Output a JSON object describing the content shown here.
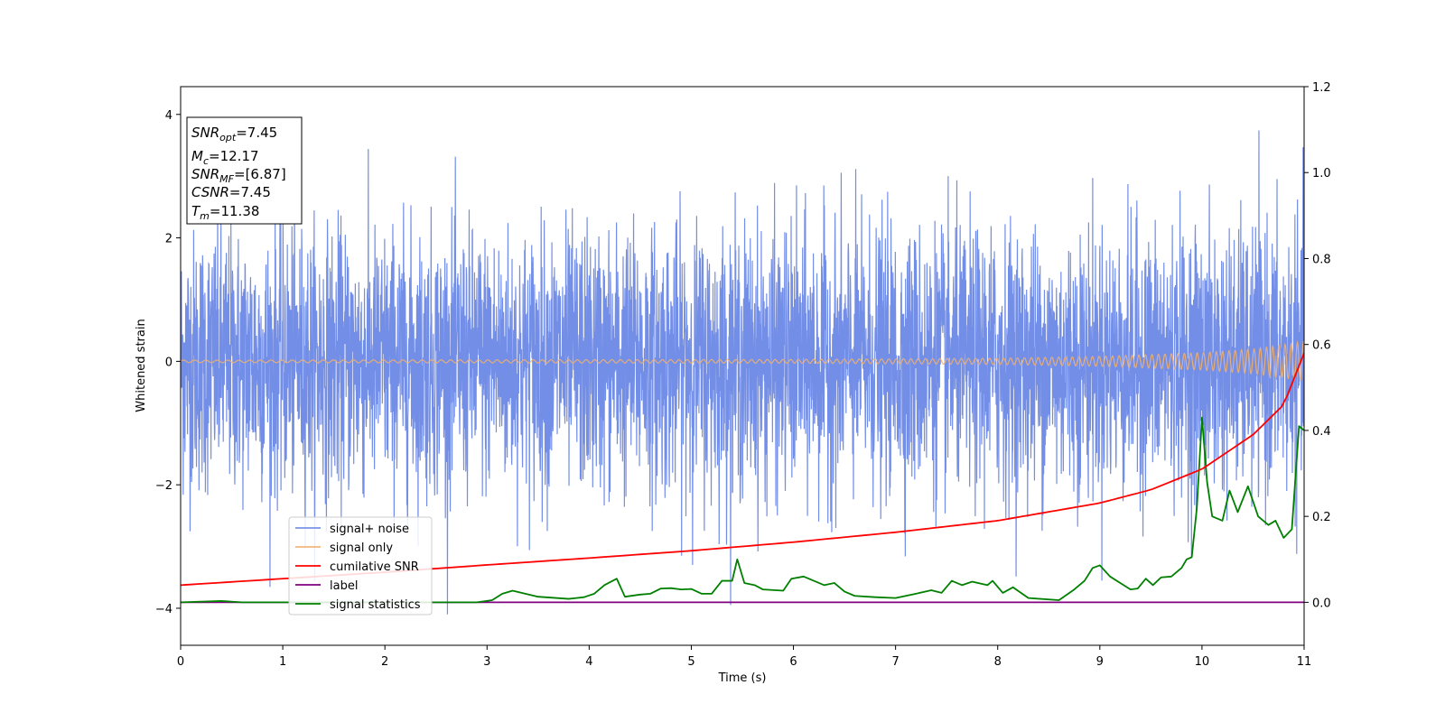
{
  "chart_data": {
    "type": "line",
    "xlabel": "Time (s)",
    "ylabel": "Whitened strain",
    "xlim": [
      0,
      11
    ],
    "ylim_left": [
      -4.6,
      4.45
    ],
    "ylim_right": [
      -0.1,
      1.2
    ],
    "xticks": [
      0,
      1,
      2,
      3,
      4,
      5,
      6,
      7,
      8,
      9,
      10,
      11
    ],
    "xtick_labels": [
      "0",
      "1",
      "2",
      "3",
      "4",
      "5",
      "6",
      "7",
      "8",
      "9",
      "10",
      "11"
    ],
    "yticks_left": [
      -4,
      -2,
      0,
      2,
      4
    ],
    "ytick_labels_left": [
      "−4",
      "−2",
      "0",
      "2",
      "4"
    ],
    "yticks_right": [
      0.0,
      0.2,
      0.4,
      0.6,
      0.8,
      1.0,
      1.2
    ],
    "ytick_labels_right": [
      "0.0",
      "0.2",
      "0.4",
      "0.6",
      "0.8",
      "1.0",
      "1.2"
    ],
    "grid": false,
    "legend_position": "lower-left",
    "series": [
      {
        "name": "signal+ noise",
        "axis": "left",
        "color": "#6b88e6",
        "description_values": "dense noise, std about 1.0, range about -4.1 to 4.05"
      },
      {
        "name": "signal only",
        "axis": "left",
        "color": "#f0b070",
        "amplitude_envelope": {
          "x": [
            0,
            6,
            8,
            9,
            10,
            10.5,
            11
          ],
          "y": [
            0.02,
            0.03,
            0.05,
            0.08,
            0.14,
            0.2,
            0.32
          ]
        }
      },
      {
        "name": "cumilative SNR",
        "axis": "right",
        "color": "#ff0000",
        "x": [
          0,
          1,
          2,
          3,
          4,
          5,
          6,
          7,
          8,
          9,
          9.5,
          10,
          10.5,
          10.8,
          11
        ],
        "values": [
          0.04,
          0.055,
          0.07,
          0.087,
          0.103,
          0.12,
          0.14,
          0.163,
          0.19,
          0.231,
          0.262,
          0.31,
          0.39,
          0.46,
          0.58
        ]
      },
      {
        "name": "label",
        "axis": "right",
        "color": "#800080",
        "x": [
          0,
          11
        ],
        "values": [
          0.0,
          0.0
        ]
      },
      {
        "name": "signal statistics",
        "axis": "right",
        "color": "#008000",
        "x": [
          0,
          0.4,
          0.6,
          1,
          2,
          2.9,
          3.05,
          3.15,
          3.25,
          3.5,
          3.8,
          3.95,
          4.05,
          4.15,
          4.27,
          4.35,
          4.5,
          4.6,
          4.7,
          4.8,
          4.9,
          5.0,
          5.1,
          5.2,
          5.3,
          5.4,
          5.45,
          5.52,
          5.62,
          5.7,
          5.9,
          5.98,
          6.1,
          6.2,
          6.3,
          6.4,
          6.5,
          6.6,
          6.8,
          7.0,
          7.2,
          7.35,
          7.45,
          7.55,
          7.65,
          7.75,
          7.9,
          7.95,
          8.05,
          8.15,
          8.3,
          8.6,
          8.75,
          8.85,
          8.93,
          9.0,
          9.1,
          9.2,
          9.3,
          9.37,
          9.45,
          9.52,
          9.6,
          9.7,
          9.8,
          9.85,
          9.9,
          9.95,
          10.0,
          10.05,
          10.1,
          10.2,
          10.27,
          10.35,
          10.45,
          10.55,
          10.65,
          10.72,
          10.8,
          10.88,
          10.95,
          11.0
        ],
        "values": [
          0.0,
          0.003,
          0.0,
          0.0,
          0.0,
          0.0,
          0.005,
          0.02,
          0.027,
          0.013,
          0.008,
          0.012,
          0.02,
          0.04,
          0.055,
          0.013,
          0.018,
          0.02,
          0.032,
          0.033,
          0.03,
          0.031,
          0.02,
          0.02,
          0.05,
          0.05,
          0.1,
          0.045,
          0.04,
          0.03,
          0.027,
          0.055,
          0.06,
          0.05,
          0.04,
          0.045,
          0.025,
          0.015,
          0.012,
          0.01,
          0.02,
          0.028,
          0.022,
          0.05,
          0.04,
          0.048,
          0.04,
          0.05,
          0.022,
          0.035,
          0.01,
          0.005,
          0.03,
          0.05,
          0.08,
          0.086,
          0.06,
          0.045,
          0.03,
          0.032,
          0.055,
          0.04,
          0.058,
          0.06,
          0.08,
          0.1,
          0.105,
          0.22,
          0.43,
          0.28,
          0.2,
          0.19,
          0.26,
          0.21,
          0.27,
          0.2,
          0.18,
          0.19,
          0.15,
          0.17,
          0.41,
          0.4
        ]
      }
    ],
    "stats_box": [
      {
        "base": "SNR",
        "sub": "opt",
        "value": "=7.45"
      },
      {
        "base": "M",
        "sub": "c",
        "value": "=12.17"
      },
      {
        "base": "SNR",
        "sub": "MF",
        "value": "=[6.87]"
      },
      {
        "base": "CSNR",
        "sub": "",
        "value": "=7.45"
      },
      {
        "base": "T",
        "sub": "m",
        "value": "=11.38"
      }
    ]
  }
}
